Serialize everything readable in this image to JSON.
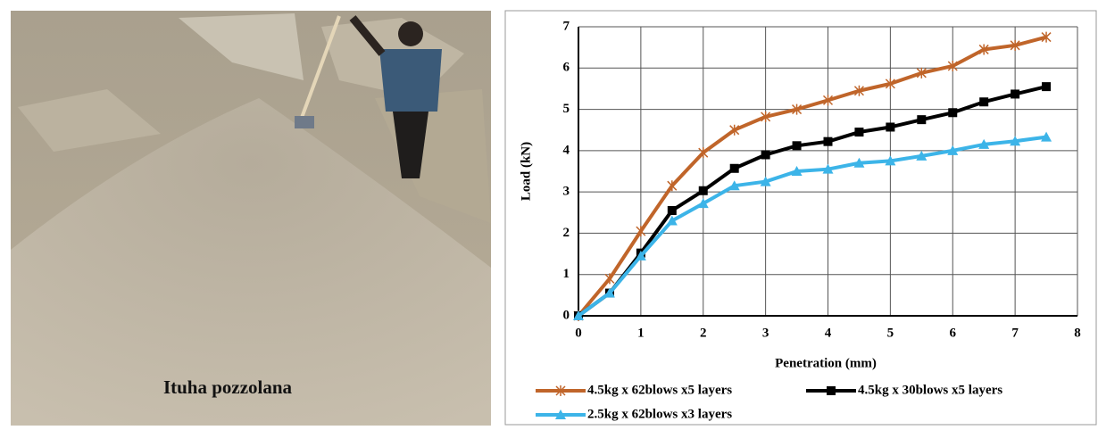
{
  "photo_caption": "Ituha pozzolana",
  "chart_data": {
    "type": "line",
    "x_label": "Penetration (mm)",
    "y_label": "Load (kN)",
    "x": [
      0,
      0.5,
      1,
      1.5,
      2,
      2.5,
      3,
      3.5,
      4,
      4.5,
      5,
      5.5,
      6,
      6.5,
      7,
      7.5
    ],
    "series": [
      {
        "name": "4.5kg x 62blows x5 layers",
        "color": "#c0652a",
        "marker": "x",
        "values": [
          0,
          0.9,
          2.05,
          3.15,
          3.95,
          4.5,
          4.82,
          5.0,
          5.22,
          5.45,
          5.62,
          5.88,
          6.05,
          6.45,
          6.55,
          6.75
        ]
      },
      {
        "name": "4.5kg x 30blows x5 layers",
        "color": "#000000",
        "marker": "square",
        "values": [
          0,
          0.55,
          1.52,
          2.55,
          3.03,
          3.57,
          3.9,
          4.12,
          4.22,
          4.45,
          4.57,
          4.75,
          4.92,
          5.18,
          5.37,
          5.55
        ]
      },
      {
        "name": "2.5kg x 62blows x3 layers",
        "color": "#3cb4e8",
        "marker": "triangle",
        "values": [
          0,
          0.55,
          1.45,
          2.3,
          2.72,
          3.15,
          3.25,
          3.5,
          3.55,
          3.7,
          3.75,
          3.87,
          4.0,
          4.15,
          4.23,
          4.33
        ]
      }
    ],
    "xlim": [
      0,
      8
    ],
    "xticks": [
      0,
      1,
      2,
      3,
      4,
      5,
      6,
      7,
      8
    ],
    "ylim": [
      0,
      7
    ],
    "yticks": [
      0,
      1,
      2,
      3,
      4,
      5,
      6,
      7
    ],
    "grid": true
  }
}
